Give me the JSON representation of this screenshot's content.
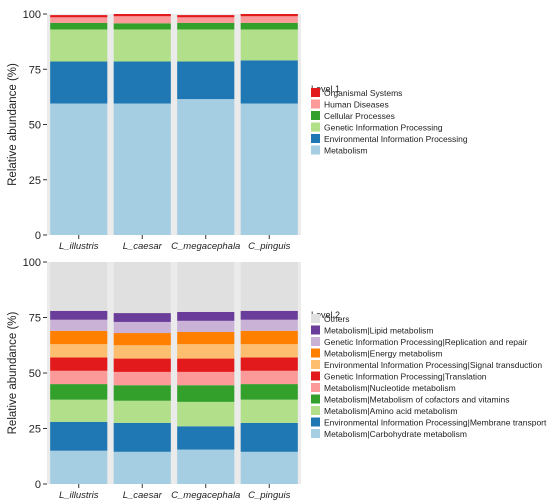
{
  "chart_data": [
    {
      "type": "bar",
      "stacked": true,
      "title": "",
      "xlabel": "",
      "ylabel": "Relative abundance (%)",
      "ylim": [
        0,
        100
      ],
      "yticks": [
        0,
        25,
        50,
        75,
        100
      ],
      "grid": false,
      "legend_position": "right",
      "legend_title": "Level.1",
      "categories": [
        "L_illustris",
        "L_caesar",
        "C_megacephala",
        "C_pinguis"
      ],
      "series": [
        {
          "name": "Metabolism",
          "color": "#a6cee3",
          "values": [
            59.5,
            59.5,
            61.5,
            59.5
          ]
        },
        {
          "name": "Environmental Information Processing",
          "color": "#1f78b4",
          "values": [
            19,
            19,
            17,
            19.5
          ]
        },
        {
          "name": "Genetic Information Processing",
          "color": "#b2df8a",
          "values": [
            14.5,
            14.5,
            14.5,
            14
          ]
        },
        {
          "name": "Cellular Processes",
          "color": "#33a02c",
          "values": [
            3,
            2.8,
            3,
            3
          ]
        },
        {
          "name": "Human Diseases",
          "color": "#fb9a99",
          "values": [
            2.5,
            3.2,
            2.5,
            3
          ]
        },
        {
          "name": "Organismal Systems",
          "color": "#e31a1c",
          "values": [
            1,
            1,
            1,
            1
          ]
        }
      ]
    },
    {
      "type": "bar",
      "stacked": true,
      "title": "",
      "xlabel": "",
      "ylabel": "Relative abundance (%)",
      "ylim": [
        0,
        100
      ],
      "yticks": [
        0,
        25,
        50,
        75,
        100
      ],
      "grid": false,
      "legend_position": "right",
      "legend_title": "Level.2",
      "categories": [
        "L_illustris",
        "L_caesar",
        "C_megacephala",
        "C_pinguis"
      ],
      "series": [
        {
          "name": "Metabolism|Carbohydrate metabolism",
          "color": "#a6cee3",
          "values": [
            15,
            14.5,
            15.5,
            14.5
          ]
        },
        {
          "name": "Environmental Information Processing|Membrane transport",
          "color": "#1f78b4",
          "values": [
            13,
            13,
            10.5,
            13
          ]
        },
        {
          "name": "Metabolism|Amino acid metabolism",
          "color": "#b2df8a",
          "values": [
            10,
            10,
            11,
            10.5
          ]
        },
        {
          "name": "Metabolism|Metabolism of cofactors and vitamins",
          "color": "#33a02c",
          "values": [
            7,
            7,
            7.5,
            7
          ]
        },
        {
          "name": "Metabolism|Nucleotide metabolism",
          "color": "#fb9a99",
          "values": [
            6,
            6,
            6,
            6
          ]
        },
        {
          "name": "Genetic Information Processing|Translation",
          "color": "#e31a1c",
          "values": [
            6,
            6,
            6,
            6
          ]
        },
        {
          "name": "Environmental Information Processing|Signal transduction",
          "color": "#fdbf6f",
          "values": [
            6,
            6,
            6.5,
            6
          ]
        },
        {
          "name": "Metabolism|Energy metabolism",
          "color": "#ff7f00",
          "values": [
            6,
            5.5,
            5.5,
            6
          ]
        },
        {
          "name": "Genetic Information Processing|Replication and repair",
          "color": "#cab2d6",
          "values": [
            5,
            5,
            5,
            5
          ]
        },
        {
          "name": "Metabolism|Lipid metabolism",
          "color": "#6a3d9a",
          "values": [
            4,
            4,
            4,
            4
          ]
        },
        {
          "name": "Others",
          "color": "#e0e0e0",
          "values": [
            22,
            23,
            22.5,
            22
          ]
        }
      ]
    }
  ]
}
